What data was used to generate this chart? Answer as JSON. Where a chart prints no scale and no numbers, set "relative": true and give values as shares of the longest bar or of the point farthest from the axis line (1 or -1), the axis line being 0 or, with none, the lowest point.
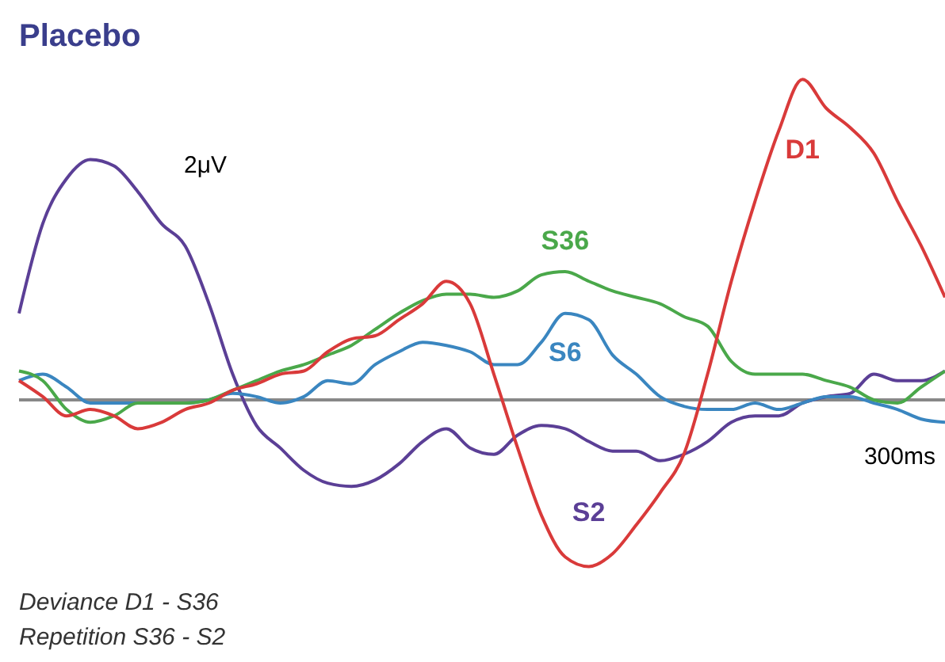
{
  "chart_data": {
    "type": "line",
    "title": "Placebo",
    "relative": true,
    "categories": [
      null,
      null,
      null,
      null,
      null,
      null,
      null,
      null,
      null,
      null,
      null,
      null,
      null,
      null,
      null,
      null,
      null,
      null,
      null,
      null,
      null,
      null,
      null,
      null,
      null,
      null,
      null,
      null,
      null,
      null,
      null,
      null,
      null,
      null,
      null,
      null,
      null,
      null,
      null,
      null
    ],
    "series": [
      {
        "name": "S2",
        "color": "#5b3f96",
        "values": [
          0.27,
          0.55,
          0.69,
          0.75,
          0.73,
          0.65,
          0.55,
          0.48,
          0.3,
          0.08,
          -0.08,
          -0.15,
          -0.22,
          -0.26,
          -0.27,
          -0.25,
          -0.2,
          -0.13,
          -0.09,
          -0.15,
          -0.17,
          -0.11,
          -0.08,
          -0.09,
          -0.13,
          -0.16,
          -0.16,
          -0.19,
          -0.17,
          -0.13,
          -0.07,
          -0.05,
          -0.05,
          -0.01,
          0.01,
          0.02,
          0.08,
          0.06,
          0.06,
          0.09
        ]
      },
      {
        "name": "S6",
        "color": "#3a86c0",
        "values": [
          0.06,
          0.08,
          0.04,
          -0.01,
          -0.01,
          -0.01,
          -0.01,
          -0.01,
          0,
          0.02,
          0.01,
          -0.01,
          0.01,
          0.06,
          0.05,
          0.11,
          0.15,
          0.18,
          0.17,
          0.15,
          0.11,
          0.11,
          0.18,
          0.27,
          0.25,
          0.14,
          0.08,
          0.01,
          -0.02,
          -0.03,
          -0.03,
          -0.01,
          -0.03,
          -0.01,
          0.01,
          0.01,
          -0.01,
          -0.03,
          -0.06,
          -0.07
        ]
      },
      {
        "name": "S36",
        "color": "#4aa84a",
        "values": [
          0.09,
          0.06,
          -0.03,
          -0.07,
          -0.05,
          -0.01,
          -0.01,
          -0.01,
          0,
          0.03,
          0.06,
          0.09,
          0.11,
          0.14,
          0.17,
          0.22,
          0.27,
          0.31,
          0.33,
          0.33,
          0.32,
          0.34,
          0.39,
          0.4,
          0.37,
          0.34,
          0.32,
          0.3,
          0.26,
          0.23,
          0.12,
          0.08,
          0.08,
          0.08,
          0.06,
          0.04,
          0,
          -0.01,
          0.04,
          0.09
        ]
      },
      {
        "name": "D1",
        "color": "#d93a3a",
        "values": [
          0.06,
          0.01,
          -0.05,
          -0.03,
          -0.05,
          -0.09,
          -0.07,
          -0.03,
          -0.01,
          0.03,
          0.05,
          0.08,
          0.09,
          0.15,
          0.19,
          0.2,
          0.25,
          0.3,
          0.37,
          0.3,
          0.08,
          -0.15,
          -0.36,
          -0.49,
          -0.52,
          -0.48,
          -0.39,
          -0.29,
          -0.17,
          0.08,
          0.37,
          0.62,
          0.84,
          1,
          0.91,
          0.85,
          0.77,
          0.62,
          0.48,
          0.32
        ]
      }
    ],
    "ref_lines": [
      {
        "axis": "y",
        "value": 0,
        "color": "#888888"
      }
    ],
    "annotations": [
      "2μV",
      "300ms",
      "Deviance D1 - S36",
      "Repetition S36 - S2"
    ]
  }
}
